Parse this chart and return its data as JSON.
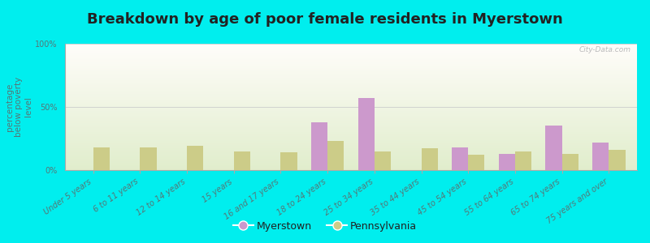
{
  "title": "Breakdown by age of poor female residents in Myerstown",
  "ylabel": "percentage\nbelow poverty\nlevel",
  "categories": [
    "Under 5 years",
    "6 to 11 years",
    "12 to 14 years",
    "15 years",
    "16 and 17 years",
    "18 to 24 years",
    "25 to 34 years",
    "35 to 44 years",
    "45 to 54 years",
    "55 to 64 years",
    "65 to 74 years",
    "75 years and over"
  ],
  "myerstown": [
    0,
    0,
    0,
    0,
    0,
    38,
    57,
    0,
    18,
    13,
    35,
    22
  ],
  "pennsylvania": [
    18,
    18,
    19,
    15,
    14,
    23,
    15,
    17,
    12,
    15,
    13,
    16
  ],
  "myerstown_color": "#cc99cc",
  "pennsylvania_color": "#cccc88",
  "background_color": "#00eeee",
  "plot_bg_gradient_top": "#f5f8e8",
  "plot_bg_gradient_bottom": "#e8f5e8",
  "ylim": [
    0,
    100
  ],
  "yticks": [
    0,
    50,
    100
  ],
  "ytick_labels": [
    "0%",
    "50%",
    "100%"
  ],
  "title_fontsize": 13,
  "axis_label_fontsize": 7.5,
  "tick_fontsize": 7,
  "legend_fontsize": 9,
  "bar_width": 0.35,
  "watermark": "City-Data.com",
  "text_color": "#557777",
  "title_color": "#222222"
}
